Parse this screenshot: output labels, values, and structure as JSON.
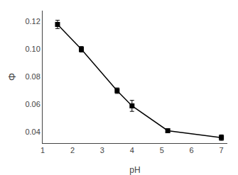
{
  "chart_data": {
    "type": "line",
    "x": [
      1.5,
      2.3,
      3.5,
      4.0,
      5.2,
      7.0
    ],
    "values": [
      0.118,
      0.1,
      0.07,
      0.059,
      0.041,
      0.036
    ],
    "yerr": [
      0.003,
      0.002,
      0.002,
      0.004,
      0.001,
      0.002
    ],
    "xlabel": "pH",
    "ylabel": "Φ",
    "xlim": [
      1,
      7.2
    ],
    "ylim": [
      0.032,
      0.128
    ],
    "xticks": [
      1,
      2,
      3,
      4,
      5,
      6,
      7
    ],
    "yticks": [
      0.04,
      0.06,
      0.08,
      {
        "value": 0.1,
        "label": "0.10"
      },
      0.12
    ],
    "marker": "square",
    "line_style": "solid",
    "color": "black",
    "grid": false
  }
}
